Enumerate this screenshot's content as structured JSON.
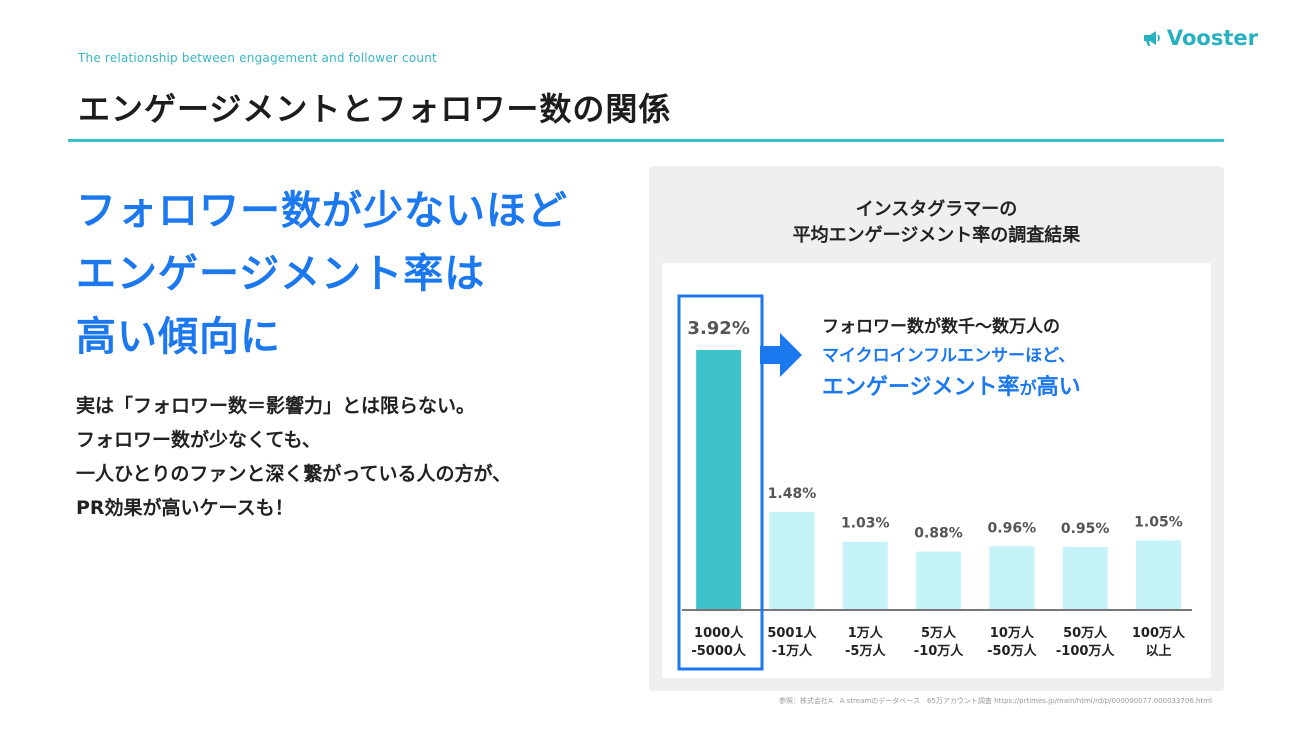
{
  "header": {
    "subtitle_en": "The relationship between engagement and follower count",
    "title": "エンゲージメントとフォロワー数の関係",
    "logo_text": "Vooster"
  },
  "left": {
    "headline": [
      "フォロワー数が少ないほど",
      "エンゲージメント率は",
      "高い傾向に"
    ],
    "body": [
      "実は「フォロワー数＝影響力」とは限らない。",
      "フォロワー数が少なくても、",
      "一人ひとりのファンと深く繋がっている人の方が、",
      "PR効果が高いケースも！"
    ]
  },
  "callout": {
    "line1": "フォロワー数が数千〜数万人の",
    "line2": "マイクロインフルエンサーほど、",
    "line3_main": "エンゲージメント率",
    "line3_small": "が",
    "line3_end": "高い"
  },
  "source": "参照：株式会社A　A streamのデータベース　65万アカウント調査 https://prtimes.jp/main/html/rd/p/000000077.000033706.html",
  "colors": {
    "accent_blue": "#1b78ee",
    "teal_rule": "#3cc0cc",
    "bar_highlight": "#3fc3cb",
    "bar_default": "#c5f3f7",
    "highlight_box": "#1b78ee"
  },
  "chart_data": {
    "type": "bar",
    "title": [
      "インスタグラマーの",
      "平均エンゲージメント率の調査結果"
    ],
    "categories": [
      [
        "1000人",
        "-5000人"
      ],
      [
        "5001人",
        "-1万人"
      ],
      [
        "1万人",
        "-5万人"
      ],
      [
        "5万人",
        "-10万人"
      ],
      [
        "10万人",
        "-50万人"
      ],
      [
        "50万人",
        "-100万人"
      ],
      [
        "100万人",
        "以上"
      ]
    ],
    "values": [
      3.92,
      1.48,
      1.03,
      0.88,
      0.96,
      0.95,
      1.05
    ],
    "value_labels": [
      "3.92%",
      "1.48%",
      "1.03%",
      "0.88%",
      "0.96%",
      "0.95%",
      "1.05%"
    ],
    "unit": "%",
    "highlight_index": 0,
    "ylim": [
      0,
      4.5
    ],
    "grid": false,
    "legend": "none"
  }
}
